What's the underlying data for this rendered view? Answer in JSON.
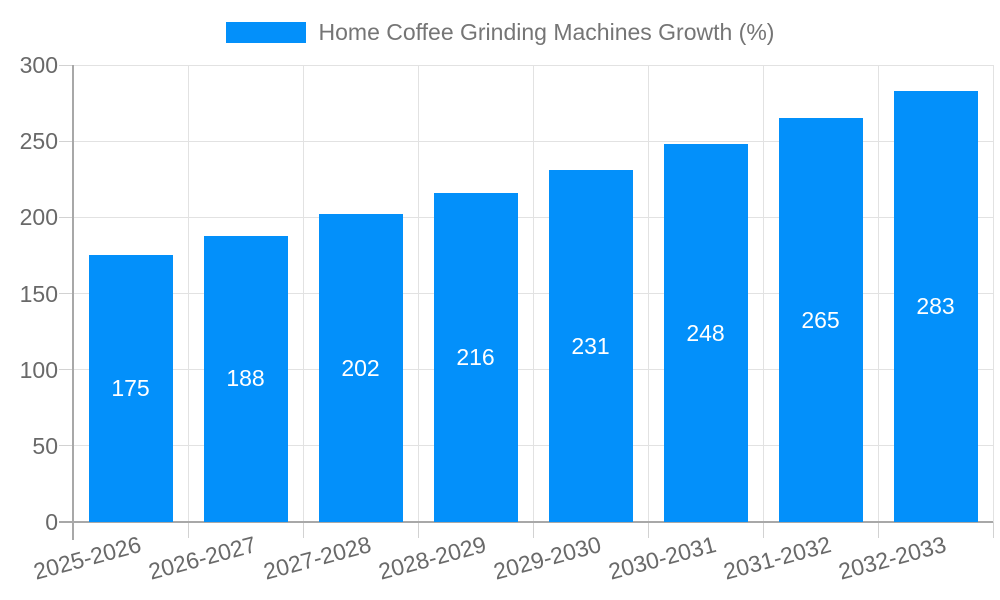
{
  "chart_data": {
    "type": "bar",
    "title": "Home Coffee Grinding Machines Growth (%)",
    "categories": [
      "2025-2026",
      "2026-2027",
      "2027-2028",
      "2028-2029",
      "2029-2030",
      "2030-2031",
      "2031-2032",
      "2032-2033"
    ],
    "values": [
      175,
      188,
      202,
      216,
      231,
      248,
      265,
      283
    ],
    "xlabel": "",
    "ylabel": "",
    "ylim": [
      0,
      300
    ],
    "yticks": [
      0,
      50,
      100,
      150,
      200,
      250,
      300
    ],
    "grid": true,
    "legend_position": "top",
    "value_labels": "inside-center",
    "colors": {
      "bar": "#0390fa",
      "grid": "#e2e2e2",
      "axis": "#a8a8a8",
      "tick": "#d2d2d2",
      "tick_label": "#696969",
      "legend_text": "#757575",
      "value_label": "#ffffff",
      "background": "#ffffff"
    }
  }
}
